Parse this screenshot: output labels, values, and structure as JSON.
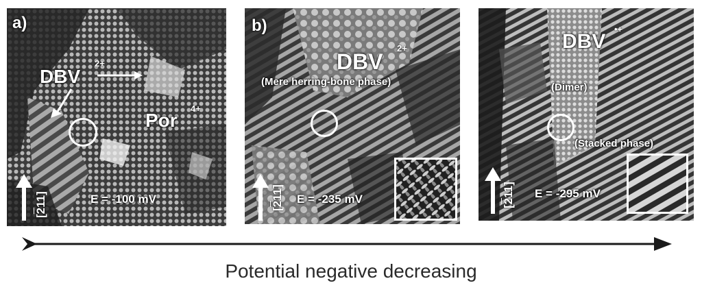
{
  "panels": [
    {
      "letter": "a)",
      "molecule_label": "DBV",
      "molecule_charge": "2+",
      "second_label": "Por",
      "second_charge": "4+",
      "direction": "[211]",
      "direction_bar": "2",
      "potential": "E = -100 mV"
    },
    {
      "letter": "b)",
      "molecule_label": "DBV",
      "molecule_charge": "2+",
      "phase": "(Mere herring-bone phase)",
      "direction": "[211]",
      "direction_bar": "2",
      "potential": "E = -235 mV"
    },
    {
      "molecule_label": "DBV",
      "molecule_charge": "•+",
      "phase_top": "(Dimer)",
      "phase_bottom": "(Stacked phase)",
      "direction": "[211]",
      "direction_bar": "2",
      "potential": "E = -295 mV"
    }
  ],
  "axis": {
    "caption": "Potential negative decreasing"
  },
  "colors": {
    "axis": "#1a1a1a",
    "text": "#2a2a2a",
    "annotation": "#ffffff"
  }
}
